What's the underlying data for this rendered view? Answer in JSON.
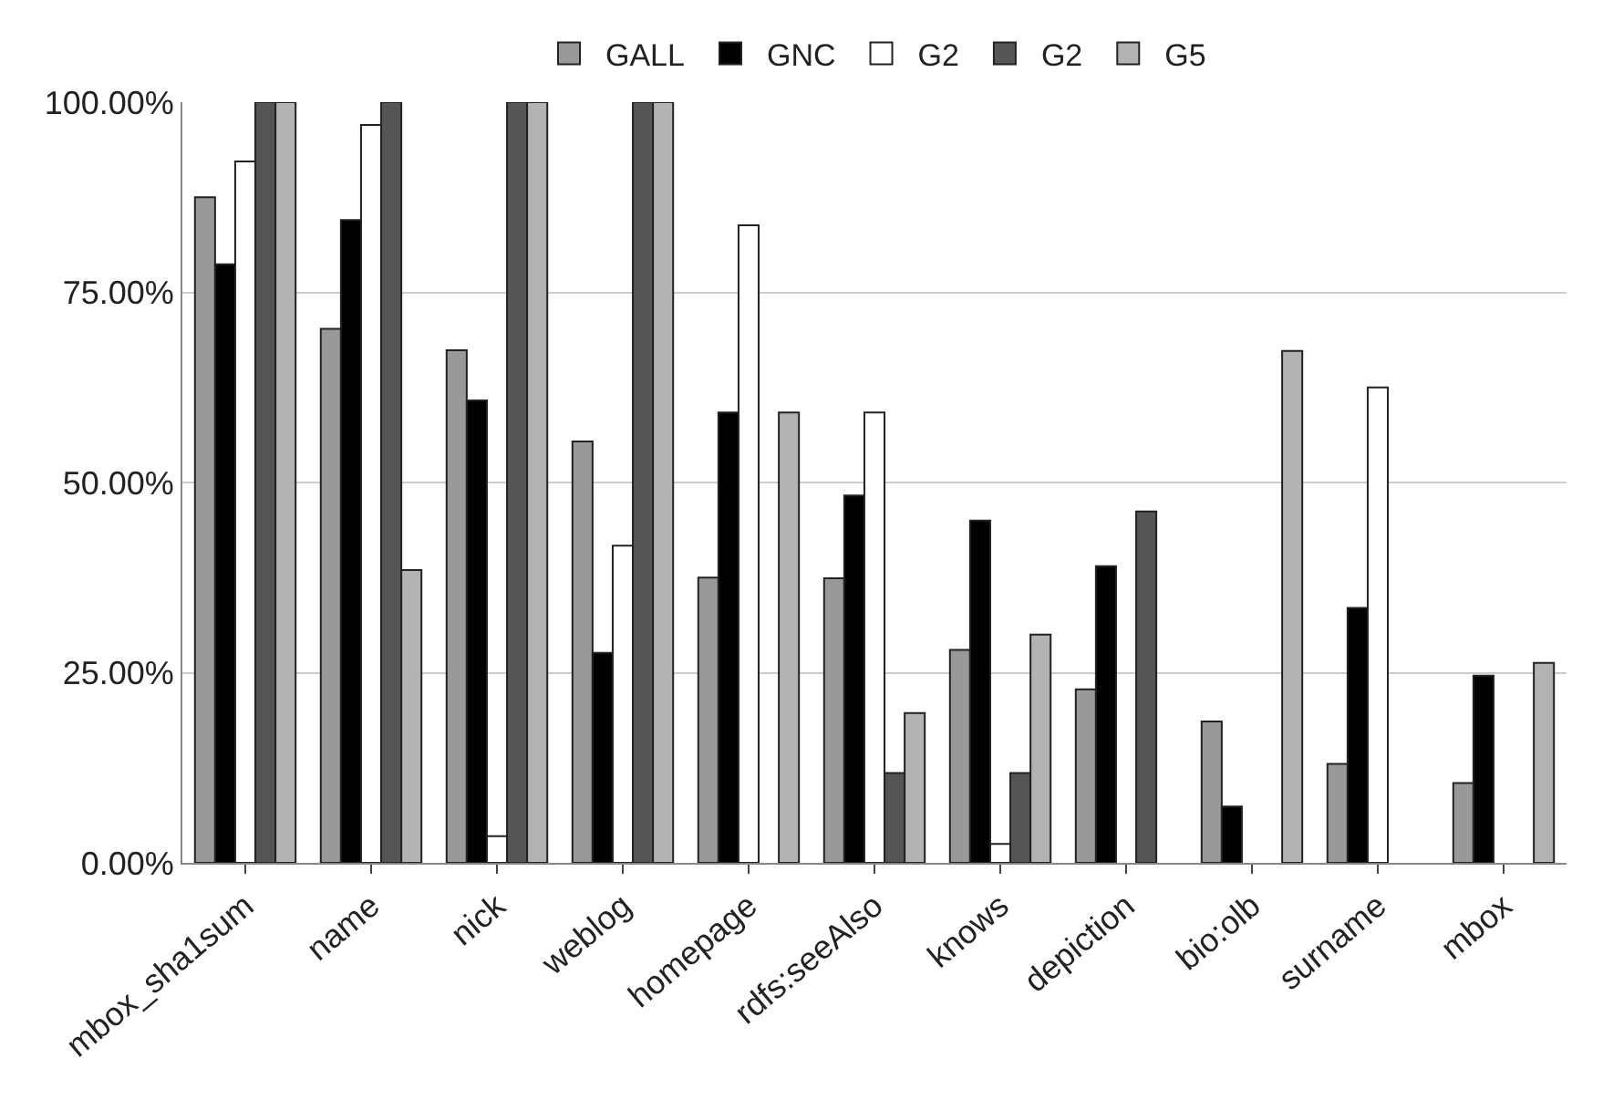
{
  "chart_data": {
    "type": "bar",
    "categories": [
      "mbox_sha1sum",
      "name",
      "nick",
      "weblog",
      "homepage",
      "rdfs:seeAlso",
      "knows",
      "depiction",
      "bio:olb",
      "surname",
      "mbox"
    ],
    "series": [
      {
        "name": "GALL",
        "color": "#999999",
        "values": [
          87.5,
          70.2,
          67.4,
          55.4,
          37.5,
          37.4,
          28,
          22.8,
          18.6,
          13,
          10.5
        ]
      },
      {
        "name": "GNC",
        "color": "#000000",
        "values": [
          78.7,
          84.5,
          60.8,
          27.6,
          59.2,
          48.3,
          45,
          39,
          7.4,
          33.5,
          24.6
        ]
      },
      {
        "name": "G2",
        "color": "#ffffff",
        "values": [
          92.2,
          97,
          3.5,
          41.7,
          83.8,
          59.2,
          2.5,
          0,
          0,
          62.5,
          0
        ]
      },
      {
        "name": "G2",
        "color": "#555555",
        "values": [
          100,
          100,
          100,
          100,
          0,
          11.8,
          11.8,
          46.2,
          0,
          0,
          0
        ]
      },
      {
        "name": "G5",
        "color": "#b3b3b3",
        "values": [
          100,
          38.5,
          100,
          100,
          59.2,
          19.7,
          30,
          0,
          67.3,
          0,
          26.3
        ]
      }
    ],
    "ylim": [
      0,
      100
    ],
    "yticks": [
      {
        "value": 0,
        "label": "0.00%"
      },
      {
        "value": 25,
        "label": "25.00%"
      },
      {
        "value": 50,
        "label": "50.00%"
      },
      {
        "value": 75,
        "label": "75.00%"
      },
      {
        "value": 100,
        "label": "100.00%"
      }
    ],
    "grid": "y",
    "legend": "top"
  }
}
